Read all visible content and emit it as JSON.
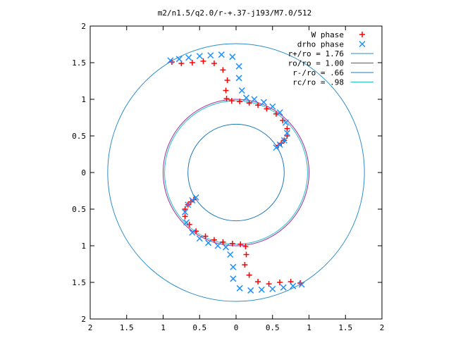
{
  "chart_data": {
    "type": "scatter",
    "title": "m2/n1.5/q2.0/r-+.37-j193/M7.0/512",
    "xlabel": "",
    "ylabel": "",
    "xlim": [
      -2,
      2
    ],
    "ylim": [
      -2,
      2
    ],
    "x_ticks": [
      "2",
      "1.5",
      "1",
      "0.5",
      "0",
      "0.5",
      "1",
      "1.5",
      "2"
    ],
    "y_ticks": [
      "2",
      "1.5",
      "1",
      "0.5",
      "0",
      "0.5",
      "1",
      "1.5",
      "2"
    ],
    "grid": false,
    "legend_position": "top-right",
    "circles": [
      {
        "name": "r+/ro = 1.76",
        "radius": 1.76,
        "color": "#2a8ec8"
      },
      {
        "name": "ro/ro = 1.00",
        "radius": 1.0,
        "color": "#a02aa0"
      },
      {
        "name": "r-/ro = .66",
        "radius": 0.66,
        "color": "#1f7ab5"
      },
      {
        "name": "rc/ro = .98",
        "radius": 0.98,
        "color": "#24c0c8"
      }
    ],
    "series": [
      {
        "name": "W phase",
        "marker": "+",
        "color": "#ff0000",
        "x": [
          -0.88,
          -0.75,
          -0.6,
          -0.45,
          -0.3,
          -0.18,
          -0.12,
          -0.14,
          -0.13,
          -0.06,
          0.05,
          0.18,
          0.3,
          0.42,
          0.55,
          0.64,
          0.7,
          0.7,
          0.66,
          0.62,
          0.58,
          0.88,
          0.75,
          0.6,
          0.45,
          0.3,
          0.18,
          0.12,
          0.14,
          0.13,
          0.06,
          -0.05,
          -0.18,
          -0.3,
          -0.42,
          -0.55,
          -0.64,
          -0.7,
          -0.7,
          -0.66,
          -0.62,
          -0.58
        ],
        "y": [
          1.51,
          1.49,
          1.5,
          1.52,
          1.49,
          1.4,
          1.26,
          1.12,
          1.01,
          0.98,
          0.97,
          0.95,
          0.92,
          0.87,
          0.8,
          0.71,
          0.6,
          0.5,
          0.44,
          0.4,
          0.37,
          -1.51,
          -1.49,
          -1.5,
          -1.52,
          -1.49,
          -1.4,
          -1.26,
          -1.12,
          -1.01,
          -0.98,
          -0.97,
          -0.95,
          -0.92,
          -0.87,
          -0.8,
          -0.71,
          -0.6,
          -0.5,
          -0.44,
          -0.4,
          -0.37
        ]
      },
      {
        "name": "drho phase",
        "marker": "x",
        "color": "#1e90ff",
        "x": [
          -0.9,
          -0.78,
          -0.65,
          -0.5,
          -0.35,
          -0.2,
          -0.05,
          0.04,
          0.04,
          0.08,
          0.14,
          0.25,
          0.38,
          0.5,
          0.6,
          0.68,
          0.7,
          0.66,
          0.6,
          0.55,
          0.9,
          0.78,
          0.65,
          0.5,
          0.35,
          0.2,
          0.05,
          -0.04,
          -0.04,
          -0.08,
          -0.14,
          -0.25,
          -0.38,
          -0.5,
          -0.6,
          -0.68,
          -0.7,
          -0.66,
          -0.6,
          -0.55
        ],
        "y": [
          1.53,
          1.55,
          1.57,
          1.59,
          1.6,
          1.61,
          1.58,
          1.45,
          1.29,
          1.12,
          1.02,
          1.0,
          0.96,
          0.9,
          0.82,
          0.68,
          0.54,
          0.44,
          0.38,
          0.34,
          -1.53,
          -1.55,
          -1.57,
          -1.59,
          -1.6,
          -1.61,
          -1.58,
          -1.45,
          -1.29,
          -1.12,
          -1.02,
          -1.0,
          -0.96,
          -0.9,
          -0.82,
          -0.68,
          -0.54,
          -0.44,
          -0.38,
          -0.34
        ]
      }
    ]
  }
}
